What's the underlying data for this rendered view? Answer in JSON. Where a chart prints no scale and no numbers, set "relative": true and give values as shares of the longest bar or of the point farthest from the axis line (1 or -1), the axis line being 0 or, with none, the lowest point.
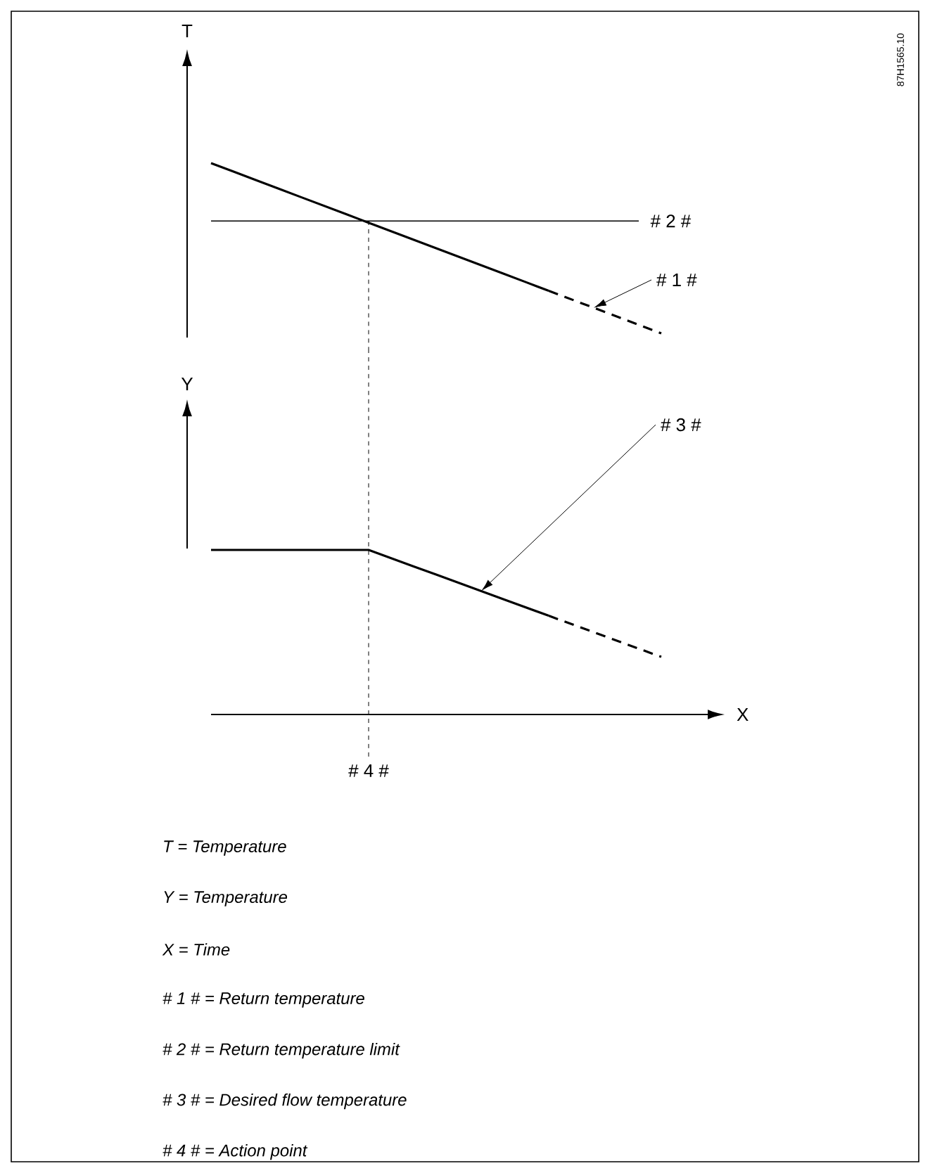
{
  "chart_data": [
    {
      "type": "line",
      "relative": true,
      "ylabel": "T",
      "categories": [
        null,
        null,
        null,
        null,
        null,
        null,
        null,
        null,
        null,
        null,
        null,
        null,
        null,
        null,
        null,
        null,
        null,
        null,
        null,
        null,
        null
      ],
      "series": [
        {
          "color": "#000000",
          "line_style": "solid",
          "values": [
            1,
            0.95,
            0.9,
            0.85,
            0.8,
            0.75,
            0.7,
            0.65,
            0.6,
            0.55,
            0.5,
            0.45,
            0.4,
            0.35,
            0.3,
            0.25,
            null,
            null,
            null,
            null,
            null
          ]
        },
        {
          "color": "#000000",
          "line_style": "dashed",
          "values": [
            null,
            null,
            null,
            null,
            null,
            null,
            null,
            null,
            null,
            null,
            null,
            null,
            null,
            null,
            null,
            0.25,
            0.2,
            0.15,
            0.1,
            0.05,
            0.0
          ]
        },
        {
          "name": "# 2 #",
          "color": "#000000",
          "line_style": "solid",
          "values": [
            0.66,
            0.66,
            0.66,
            0.66,
            0.66,
            0.66,
            0.66,
            0.66,
            0.66,
            0.66,
            0.66,
            0.66,
            0.66,
            0.66,
            0.66,
            0.66,
            0.66,
            0.66,
            0.66,
            0.66,
            null
          ]
        }
      ],
      "annotations": [
        "# 1 #"
      ]
    },
    {
      "type": "line",
      "relative": true,
      "ylabel": "Y",
      "xlabel": "X",
      "categories": [
        null,
        null,
        null,
        null,
        null,
        null,
        null,
        null,
        null,
        null,
        null,
        null,
        null,
        null,
        null,
        null,
        null,
        null,
        null,
        null,
        null
      ],
      "series": [
        {
          "color": "#000000",
          "line_style": "solid",
          "values": [
            1,
            1,
            1,
            1,
            1,
            1,
            1,
            1,
            0.95,
            0.9,
            0.85,
            0.8,
            0.75,
            0.7,
            0.65,
            0.6,
            null,
            null,
            null,
            null,
            null
          ]
        },
        {
          "color": "#000000",
          "line_style": "dashed",
          "values": [
            null,
            null,
            null,
            null,
            null,
            null,
            null,
            null,
            null,
            null,
            null,
            null,
            null,
            null,
            null,
            0.6,
            0.55,
            0.5,
            0.45,
            0.4,
            0.35
          ]
        }
      ],
      "annotations": [
        "# 3 #",
        "*T* = *Temperature*",
        "*Y* = *Temperature*",
        "*X* = *Time*",
        "*# 1 #* = *Return temperature*",
        "*# 2 #* = *Return temperature limit*",
        "*# 3 #* = *Desired flow temperature*",
        "*# 4 #* = *Action point*",
        "87H1565.10",
        "# 4 #"
      ]
    }
  ]
}
